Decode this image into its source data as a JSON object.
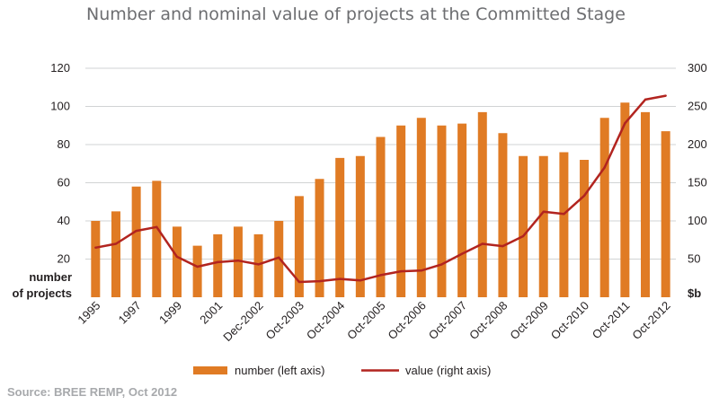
{
  "chart_data": {
    "type": "bar",
    "title": "Number and nominal value of projects at the Committed Stage",
    "source": "Source:  BREE REMP, Oct 2012",
    "left_axis": {
      "label_line1": "number",
      "label_line2": "of projects",
      "ticks": [
        "20",
        "40",
        "60",
        "80",
        "100",
        "120"
      ],
      "ylim": [
        0,
        120
      ]
    },
    "right_axis": {
      "label": "$b",
      "ticks": [
        "50",
        "100",
        "150",
        "200",
        "250",
        "300"
      ],
      "ylim": [
        0,
        300
      ]
    },
    "x_tick_labels": [
      "1995",
      "1997",
      "1999",
      "2001",
      "Dec-2002",
      "Oct-2003",
      "Oct-2004",
      "Oct-2005",
      "Oct-2006",
      "Oct-2007",
      "Oct-2008",
      "Oct-2009",
      "Oct-2010",
      "Oct-2011",
      "Oct-2012"
    ],
    "series": [
      {
        "name": "number (left axis)",
        "type": "bar",
        "axis": "left",
        "color": "#e07b24",
        "values": [
          40,
          45,
          58,
          61,
          37,
          27,
          33,
          37,
          33,
          40,
          53,
          62,
          73,
          74,
          84,
          90,
          94,
          90,
          91,
          97,
          86,
          74,
          74,
          76,
          72,
          94,
          102,
          97,
          87
        ]
      },
      {
        "name": "value (right axis)",
        "type": "line",
        "axis": "right",
        "color": "#b2241f",
        "values": [
          65,
          70,
          87,
          92,
          53,
          40,
          46,
          48,
          43,
          52,
          20,
          21,
          24,
          22,
          29,
          34,
          35,
          43,
          57,
          70,
          67,
          80,
          112,
          109,
          133,
          170,
          228,
          259,
          264
        ]
      }
    ],
    "grid": true,
    "legend_position": "bottom"
  }
}
